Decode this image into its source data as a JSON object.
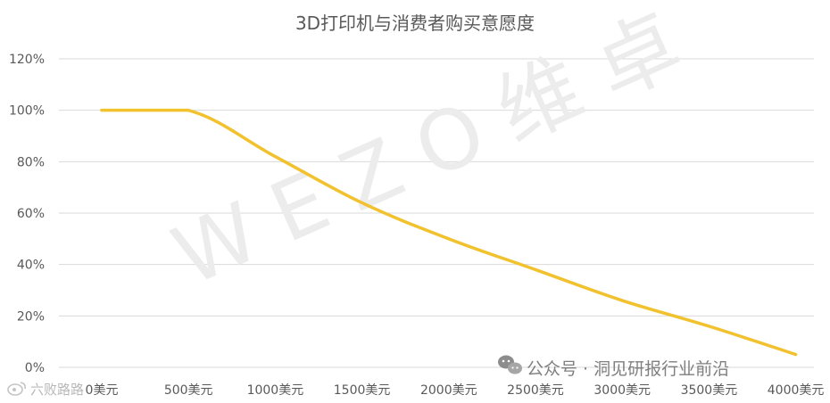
{
  "chart_data": {
    "type": "line",
    "title": "3D打印机与消费者购买意愿度",
    "categories": [
      "0美元",
      "500美元",
      "1000美元",
      "1500美元",
      "2000美元",
      "2500美元",
      "3000美元",
      "3500美元",
      "4000美元"
    ],
    "series": [
      {
        "values": [
          100,
          100,
          82,
          64,
          50,
          38,
          26,
          16,
          5
        ],
        "color": "#f2c12e"
      }
    ],
    "y_ticks": [
      "0%",
      "20%",
      "40%",
      "60%",
      "80%",
      "100%",
      "120%"
    ],
    "ylim": [
      0,
      120
    ],
    "y_unit": "%",
    "grid": true,
    "legend": "none"
  },
  "watermark": {
    "text": "WEZO维卓"
  },
  "wechat_badge": {
    "icon": "wechat-icon",
    "text": "公众号 · 洞见研报行业前沿"
  },
  "corner_badge": {
    "icon": "weibo-icon",
    "text": "六败路路"
  }
}
